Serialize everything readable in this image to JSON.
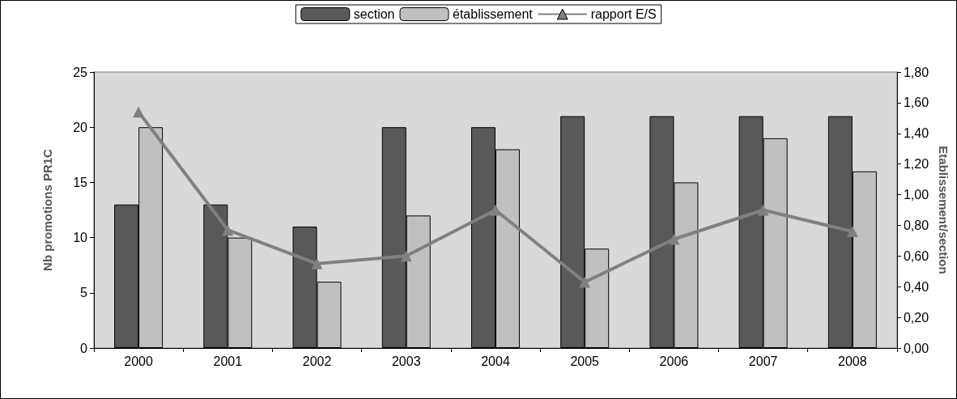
{
  "chart_data": {
    "type": "bar",
    "ylabel": "Nb promotions PR1C",
    "y2label": "Etablissement/section",
    "categories": [
      "2000",
      "2001",
      "2002",
      "2003",
      "2004",
      "2005",
      "2006",
      "2007",
      "2008"
    ],
    "series": [
      {
        "name": "section",
        "color": "#595959",
        "values": [
          13,
          13,
          11,
          20,
          20,
          21,
          21,
          21,
          21
        ]
      },
      {
        "name": "établissement",
        "color": "#c0c0c0",
        "values": [
          20,
          10,
          6,
          12,
          18,
          9,
          15,
          19,
          16
        ]
      },
      {
        "name": "rapport E/S",
        "type": "line",
        "axis": "y2",
        "color": "#808080",
        "marker": "triangle",
        "values": [
          1.54,
          0.77,
          0.55,
          0.6,
          0.9,
          0.43,
          0.71,
          0.9,
          0.76
        ]
      }
    ],
    "ylim": [
      0,
      25
    ],
    "yticks": [
      0,
      5,
      10,
      15,
      20,
      25
    ],
    "y2lim": [
      0,
      1.8
    ],
    "y2ticks": [
      {
        "value": 0,
        "label": "0,00"
      },
      {
        "value": 0.2,
        "label": "0,20"
      },
      {
        "value": 0.4,
        "label": "0,40"
      },
      {
        "value": 0.6,
        "label": "0,60"
      },
      {
        "value": 0.8,
        "label": "0,80"
      },
      {
        "value": 1,
        "label": "1,00"
      },
      {
        "value": 1.2,
        "label": "1,20"
      },
      {
        "value": 1.4,
        "label": "1,40"
      },
      {
        "value": 1.6,
        "label": "1,60"
      },
      {
        "value": 1.8,
        "label": "1,80"
      }
    ],
    "grid": false,
    "legend": "top"
  }
}
